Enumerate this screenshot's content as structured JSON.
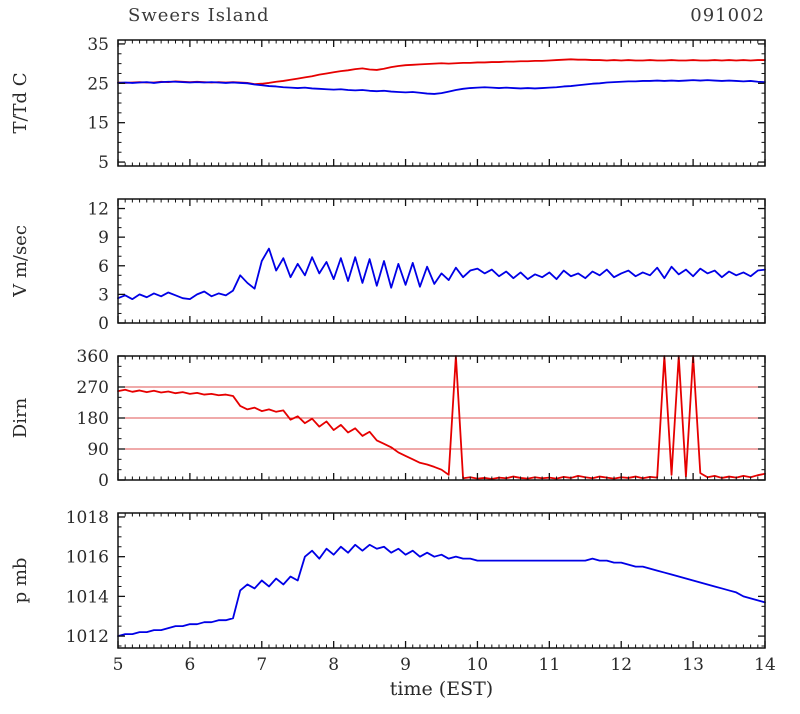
{
  "header": {
    "station": "Sweers Island",
    "date": "091002"
  },
  "chart_data": {
    "type": "line",
    "layout": "4 stacked time-series panels, shared x axis, ticks inward on all sides, legend none",
    "title": "Sweers Island",
    "date_label": "091002",
    "xlabel": "time (EST)",
    "xlim": [
      5,
      14
    ],
    "xticks": [
      5,
      6,
      7,
      8,
      9,
      10,
      11,
      12,
      13,
      14
    ],
    "x": [
      5,
      5.1,
      5.2,
      5.3,
      5.4,
      5.5,
      5.6,
      5.7,
      5.8,
      5.9,
      6,
      6.1,
      6.2,
      6.3,
      6.4,
      6.5,
      6.6,
      6.7,
      6.8,
      6.9,
      7,
      7.1,
      7.2,
      7.3,
      7.4,
      7.5,
      7.6,
      7.7,
      7.8,
      7.9,
      8,
      8.1,
      8.2,
      8.3,
      8.4,
      8.5,
      8.6,
      8.7,
      8.8,
      8.9,
      9,
      9.1,
      9.2,
      9.3,
      9.4,
      9.5,
      9.6,
      9.7,
      9.8,
      9.9,
      10,
      10.1,
      10.2,
      10.3,
      10.4,
      10.5,
      10.6,
      10.7,
      10.8,
      10.9,
      11,
      11.1,
      11.2,
      11.3,
      11.4,
      11.5,
      11.6,
      11.7,
      11.8,
      11.9,
      12,
      12.1,
      12.2,
      12.3,
      12.4,
      12.5,
      12.6,
      12.7,
      12.8,
      12.9,
      13,
      13.1,
      13.2,
      13.3,
      13.4,
      13.5,
      13.6,
      13.7,
      13.8,
      13.9,
      14
    ],
    "panels": [
      {
        "name": "temperature-dewpoint",
        "ylabel": "T/Td C",
        "ylim": [
          4,
          36
        ],
        "yticks": [
          5,
          15,
          25,
          35
        ],
        "minor_step": 2.5,
        "series": [
          {
            "name": "temperature",
            "color": "#e60000",
            "values": [
              25.2,
              25.1,
              25.2,
              25.3,
              25.2,
              25.2,
              25.4,
              25.3,
              25.5,
              25.4,
              25.3,
              25.4,
              25.3,
              25.2,
              25.3,
              25.2,
              25.3,
              25.2,
              25.1,
              24.8,
              24.9,
              25.1,
              25.4,
              25.6,
              25.9,
              26.2,
              26.5,
              26.8,
              27.2,
              27.5,
              27.8,
              28.1,
              28.3,
              28.6,
              28.8,
              28.5,
              28.4,
              28.7,
              29.1,
              29.4,
              29.6,
              29.7,
              29.8,
              29.9,
              30.0,
              30.1,
              30.0,
              30.1,
              30.2,
              30.2,
              30.3,
              30.3,
              30.4,
              30.4,
              30.5,
              30.5,
              30.6,
              30.6,
              30.7,
              30.7,
              30.8,
              30.9,
              31.0,
              31.1,
              31.0,
              31.0,
              30.9,
              30.9,
              30.8,
              30.9,
              30.8,
              30.9,
              30.8,
              30.8,
              30.9,
              30.8,
              30.8,
              30.9,
              30.8,
              30.8,
              30.9,
              30.8,
              30.8,
              30.9,
              30.8,
              30.9,
              30.8,
              30.9,
              30.8,
              30.9,
              30.9
            ]
          },
          {
            "name": "dewpoint",
            "color": "#0000e6",
            "values": [
              25.1,
              25.2,
              25.1,
              25.2,
              25.3,
              25.1,
              25.3,
              25.4,
              25.4,
              25.3,
              25.2,
              25.3,
              25.2,
              25.3,
              25.2,
              25.1,
              25.2,
              25.1,
              25.0,
              24.7,
              24.5,
              24.3,
              24.2,
              24.0,
              23.9,
              23.8,
              23.9,
              23.7,
              23.6,
              23.5,
              23.4,
              23.5,
              23.3,
              23.2,
              23.3,
              23.1,
              23.0,
              23.1,
              22.9,
              22.8,
              22.7,
              22.8,
              22.6,
              22.4,
              22.3,
              22.5,
              22.9,
              23.3,
              23.6,
              23.8,
              23.9,
              24.0,
              23.9,
              23.8,
              23.9,
              23.8,
              23.7,
              23.8,
              23.7,
              23.8,
              23.9,
              24.0,
              24.2,
              24.3,
              24.5,
              24.7,
              24.9,
              25.0,
              25.2,
              25.3,
              25.4,
              25.5,
              25.5,
              25.6,
              25.6,
              25.7,
              25.6,
              25.7,
              25.6,
              25.7,
              25.8,
              25.7,
              25.8,
              25.7,
              25.6,
              25.7,
              25.6,
              25.5,
              25.6,
              25.4,
              25.3
            ]
          }
        ]
      },
      {
        "name": "wind-speed",
        "ylabel": "V m/sec",
        "ylim": [
          0,
          13
        ],
        "yticks": [
          0,
          3,
          6,
          9,
          12
        ],
        "minor_step": 1,
        "series": [
          {
            "name": "wind-speed",
            "color": "#0000e6",
            "values": [
              2.6,
              2.9,
              2.5,
              3.0,
              2.7,
              3.1,
              2.8,
              3.2,
              2.9,
              2.6,
              2.5,
              3.0,
              3.3,
              2.8,
              3.1,
              2.9,
              3.4,
              5.0,
              4.2,
              3.6,
              6.5,
              7.8,
              5.5,
              6.8,
              4.8,
              6.2,
              5.0,
              6.9,
              5.2,
              6.4,
              4.6,
              6.8,
              4.4,
              6.9,
              4.2,
              6.7,
              3.9,
              6.5,
              3.7,
              6.2,
              4.0,
              6.3,
              3.8,
              5.9,
              4.1,
              5.2,
              4.5,
              5.8,
              4.8,
              5.5,
              5.7,
              5.2,
              5.6,
              4.9,
              5.4,
              4.7,
              5.3,
              4.6,
              5.1,
              4.8,
              5.3,
              4.6,
              5.5,
              4.9,
              5.2,
              4.7,
              5.4,
              5.0,
              5.6,
              4.8,
              5.2,
              5.5,
              4.9,
              5.3,
              5.0,
              5.8,
              4.7,
              5.9,
              5.1,
              5.6,
              4.9,
              5.7,
              5.2,
              5.5,
              4.8,
              5.4,
              5.0,
              5.3,
              4.9,
              5.5,
              5.6
            ]
          }
        ]
      },
      {
        "name": "wind-direction",
        "ylabel": "Dirn",
        "ylim": [
          0,
          360
        ],
        "yticks": [
          0,
          90,
          180,
          270,
          360
        ],
        "minor_step": 30,
        "gridlines": [
          90,
          180,
          270
        ],
        "gridline_color": "#e05555",
        "series": [
          {
            "name": "wind-direction",
            "color": "#e60000",
            "values": [
              258,
              262,
              256,
              260,
              255,
              259,
              254,
              257,
              252,
              255,
              250,
              253,
              248,
              250,
              246,
              248,
              244,
              215,
              205,
              210,
              200,
              205,
              198,
              202,
              175,
              185,
              165,
              178,
              155,
              170,
              145,
              160,
              138,
              150,
              128,
              140,
              115,
              105,
              95,
              80,
              70,
              60,
              50,
              45,
              38,
              30,
              15,
              360,
              5,
              8,
              4,
              6,
              3,
              7,
              5,
              10,
              6,
              4,
              8,
              5,
              7,
              4,
              9,
              6,
              12,
              8,
              5,
              10,
              7,
              4,
              8,
              6,
              10,
              5,
              9,
              7,
              360,
              15,
              360,
              10,
              360,
              20,
              8,
              12,
              6,
              10,
              7,
              12,
              8,
              14,
              18
            ]
          }
        ]
      },
      {
        "name": "pressure",
        "ylabel": "p mb",
        "ylim": [
          1011.4,
          1018.2
        ],
        "yticks": [
          1012,
          1014,
          1016,
          1018
        ],
        "minor_step": 0.5,
        "series": [
          {
            "name": "pressure",
            "color": "#0000e6",
            "values": [
              1012.0,
              1012.1,
              1012.1,
              1012.2,
              1012.2,
              1012.3,
              1012.3,
              1012.4,
              1012.5,
              1012.5,
              1012.6,
              1012.6,
              1012.7,
              1012.7,
              1012.8,
              1012.8,
              1012.9,
              1014.3,
              1014.6,
              1014.4,
              1014.8,
              1014.5,
              1014.9,
              1014.6,
              1015.0,
              1014.8,
              1016.0,
              1016.3,
              1015.9,
              1016.4,
              1016.1,
              1016.5,
              1016.2,
              1016.6,
              1016.3,
              1016.6,
              1016.4,
              1016.5,
              1016.2,
              1016.4,
              1016.1,
              1016.3,
              1016.0,
              1016.2,
              1016.0,
              1016.1,
              1015.9,
              1016.0,
              1015.9,
              1015.9,
              1015.8,
              1015.8,
              1015.8,
              1015.8,
              1015.8,
              1015.8,
              1015.8,
              1015.8,
              1015.8,
              1015.8,
              1015.8,
              1015.8,
              1015.8,
              1015.8,
              1015.8,
              1015.8,
              1015.9,
              1015.8,
              1015.8,
              1015.7,
              1015.7,
              1015.6,
              1015.5,
              1015.5,
              1015.4,
              1015.3,
              1015.2,
              1015.1,
              1015.0,
              1014.9,
              1014.8,
              1014.7,
              1014.6,
              1014.5,
              1014.4,
              1014.3,
              1014.2,
              1014.0,
              1013.9,
              1013.8,
              1013.7
            ]
          }
        ]
      }
    ]
  }
}
